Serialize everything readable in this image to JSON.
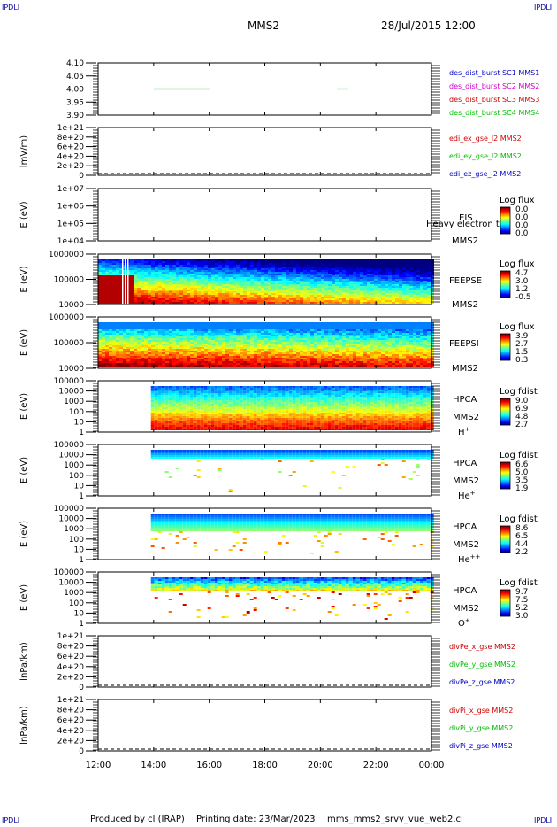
{
  "header": {
    "mission": "MMS2",
    "datetime": "28/Jul/2015 12:00",
    "corner_label": "IPDLI"
  },
  "footer": {
    "produced_by": "Produced by cl (IRAP)",
    "printing_date": "Printing date: 23/Mar/2023",
    "script_name": "mms_mms2_srvy_vue_web2.cl"
  },
  "colors": {
    "blue": "#0000c0",
    "magenta": "#d000d0",
    "red": "#d00000",
    "green": "#00c000"
  },
  "chart_data": [
    {
      "type": "line",
      "title": "",
      "ylabel": "",
      "yticks": [
        "4.10",
        "4.05",
        "4.00",
        "3.95",
        "3.90"
      ],
      "ylim": [
        3.9,
        4.1
      ],
      "series": [
        {
          "name": "des_dist_burst SC1 MMS1",
          "color": "#0000c0",
          "segments": []
        },
        {
          "name": "des_dist_burst SC2 MMS2",
          "color": "#d000d0",
          "segments": []
        },
        {
          "name": "des_dist_burst SC3 MMS3",
          "color": "#d00000",
          "segments": []
        },
        {
          "name": "des_dist_burst SC4 MMS4",
          "color": "#00c000",
          "segments": [
            [
              14.0,
              16.0,
              4.0
            ],
            [
              20.6,
              21.0,
              4.0
            ]
          ]
        }
      ]
    },
    {
      "type": "line",
      "ylabel": "lmV/m)",
      "yticks": [
        "1e+21",
        "8e+20",
        "6e+20",
        "4e+20",
        "2e+20",
        "0"
      ],
      "ylim": [
        0,
        1e+21
      ],
      "zero_line": true,
      "series": [
        {
          "name": "edi_ex_gse_l2 MMS2",
          "color": "#d00000"
        },
        {
          "name": "edi_ey_gse_l2 MMS2",
          "color": "#00c000"
        },
        {
          "name": "edi_ez_gse_l2 MMS2",
          "color": "#0000c0"
        }
      ]
    },
    {
      "type": "heatmap",
      "ylabel": "E (eV)",
      "yticks": [
        "1e+07",
        "1e+06",
        "1e+05",
        "1e+04"
      ],
      "instrument": [
        "EIS",
        "MMS2"
      ],
      "overlay_text": "Heavy electron to",
      "colorbar_title": "Log flux",
      "colorbar_ticks": [
        "0.0",
        "0.0",
        "0.0",
        "0.0"
      ],
      "empty": true
    },
    {
      "type": "heatmap",
      "ylabel": "E (eV)",
      "yticks": [
        "1000000",
        "100000",
        "10000"
      ],
      "instrument": [
        "FEEPSE",
        "MMS2"
      ],
      "colorbar_title": "Log flux",
      "colorbar_ticks": [
        "4.7",
        "3.0",
        "1.2",
        "-0.5"
      ],
      "data_start_hour": 12.0
    },
    {
      "type": "heatmap",
      "ylabel": "E (eV)",
      "yticks": [
        "1000000",
        "100000",
        "10000"
      ],
      "instrument": [
        "FEEPSI",
        "MMS2"
      ],
      "colorbar_title": "Log flux",
      "colorbar_ticks": [
        "3.9",
        "2.7",
        "1.5",
        "0.3"
      ],
      "data_start_hour": 12.0
    },
    {
      "type": "heatmap",
      "ylabel": "E (eV)",
      "yticks": [
        "100000",
        "10000",
        "1000",
        "100",
        "10",
        "1"
      ],
      "instrument": [
        "HPCA",
        "MMS2"
      ],
      "species": "H",
      "species_sup": "+",
      "colorbar_title": "Log fdist",
      "colorbar_ticks": [
        "9.0",
        "6.9",
        "4.8",
        "2.7"
      ],
      "data_start_hour": 13.9
    },
    {
      "type": "heatmap",
      "ylabel": "E (eV)",
      "yticks": [
        "100000",
        "10000",
        "1000",
        "100",
        "10",
        "1"
      ],
      "instrument": [
        "HPCA",
        "MMS2"
      ],
      "species": "He",
      "species_sup": "+",
      "colorbar_title": "Log fdist",
      "colorbar_ticks": [
        "6.6",
        "5.0",
        "3.5",
        "1.9"
      ],
      "data_start_hour": 13.9
    },
    {
      "type": "heatmap",
      "ylabel": "E (eV)",
      "yticks": [
        "100000",
        "10000",
        "1000",
        "100",
        "10",
        "1"
      ],
      "instrument": [
        "HPCA",
        "MMS2"
      ],
      "species": "He",
      "species_sup": "++",
      "colorbar_title": "Log fdist",
      "colorbar_ticks": [
        "8.6",
        "6.5",
        "4.4",
        "2.2"
      ],
      "data_start_hour": 13.9
    },
    {
      "type": "heatmap",
      "ylabel": "E (eV)",
      "yticks": [
        "100000",
        "10000",
        "1000",
        "100",
        "10",
        "1"
      ],
      "instrument": [
        "HPCA",
        "MMS2"
      ],
      "species": "O",
      "species_sup": "+",
      "colorbar_title": "Log fdist",
      "colorbar_ticks": [
        "9.7",
        "7.5",
        "5.2",
        "3.0"
      ],
      "data_start_hour": 13.9
    },
    {
      "type": "line",
      "ylabel": "lnPa/km)",
      "yticks": [
        "1e+21",
        "8e+20",
        "6e+20",
        "4e+20",
        "2e+20",
        "0"
      ],
      "ylim": [
        0,
        1e+21
      ],
      "zero_line": true,
      "series": [
        {
          "name": "divPe_x_gse MMS2",
          "color": "#d00000"
        },
        {
          "name": "divPe_y_gse MMS2",
          "color": "#00c000"
        },
        {
          "name": "divPe_z_gse MMS2",
          "color": "#0000c0"
        }
      ]
    },
    {
      "type": "line",
      "ylabel": "lnPa/km)",
      "yticks": [
        "1e+21",
        "8e+20",
        "6e+20",
        "4e+20",
        "2e+20",
        "0"
      ],
      "ylim": [
        0,
        1e+21
      ],
      "zero_line": true,
      "series": [
        {
          "name": "divPi_x_gse MMS2",
          "color": "#d00000"
        },
        {
          "name": "divPi_y_gse MMS2",
          "color": "#00c000"
        },
        {
          "name": "divPi_z_gse MMS2",
          "color": "#0000c0"
        }
      ]
    }
  ],
  "time_axis": {
    "ticks": [
      "12:00",
      "14:00",
      "16:00",
      "18:00",
      "20:00",
      "22:00",
      "00:00"
    ],
    "range_hours": [
      12,
      24
    ]
  }
}
